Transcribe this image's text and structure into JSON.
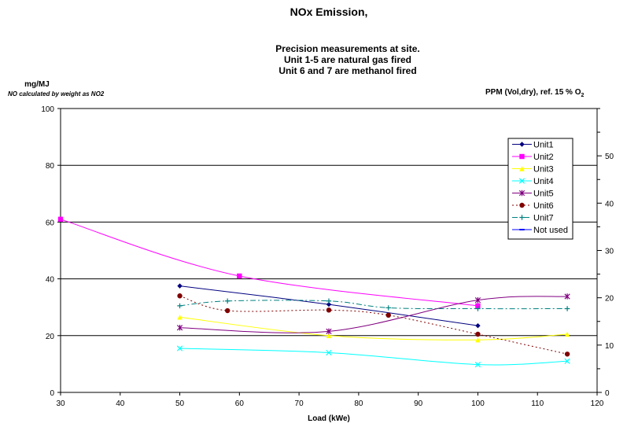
{
  "chart_data": {
    "type": "line",
    "title": "NOx Emission,",
    "subtitle_lines": [
      "Precision measurements at site.",
      "Unit 1-5 are natural gas fired",
      "Unit 6 and 7 are methanol fired"
    ],
    "xlabel": "Load (kWe)",
    "ylabel": "mg/MJ",
    "ylabel_note": "NO calculated by weight as NO2",
    "y2label_main": "PPM (Vol,dry), ref. 15 % O",
    "y2label_sub": "2",
    "xlim": [
      30,
      120
    ],
    "ylim": [
      0,
      100
    ],
    "y2lim": [
      0,
      60
    ],
    "xticks": [
      30,
      40,
      50,
      60,
      70,
      80,
      90,
      100,
      110,
      120
    ],
    "yticks": [
      0,
      20,
      40,
      60,
      80,
      100
    ],
    "y2ticks": [
      0,
      10,
      20,
      30,
      40,
      50
    ],
    "grid": "horizontal major on primary y",
    "legend_position": "upper right inside plot",
    "series": [
      {
        "name": "Unit1",
        "color": "#000080",
        "marker": "diamond",
        "dash": "solid",
        "x": [
          50,
          75,
          100
        ],
        "y": [
          37.5,
          31,
          23.5
        ]
      },
      {
        "name": "Unit2",
        "color": "#ff00ff",
        "marker": "square",
        "dash": "solid",
        "x": [
          30,
          60,
          100
        ],
        "y": [
          61,
          41,
          30.5
        ]
      },
      {
        "name": "Unit3",
        "color": "#ffff00",
        "marker": "triangle",
        "dash": "solid",
        "x": [
          50,
          75,
          100,
          115
        ],
        "y": [
          26.5,
          20,
          18.5,
          20.5
        ]
      },
      {
        "name": "Unit4",
        "color": "#00ffff",
        "marker": "x",
        "dash": "solid",
        "x": [
          50,
          75,
          100,
          115
        ],
        "y": [
          15.5,
          14,
          9.8,
          11
        ]
      },
      {
        "name": "Unit5",
        "color": "#800080",
        "marker": "star",
        "dash": "solid",
        "x": [
          50,
          75,
          100,
          115
        ],
        "y": [
          22.8,
          21.5,
          32.5,
          33.8
        ]
      },
      {
        "name": "Unit6",
        "color": "#800000",
        "marker": "circle",
        "dash": "dotted",
        "x": [
          50,
          58,
          75,
          85,
          100,
          115
        ],
        "y": [
          34,
          28.8,
          29,
          27.2,
          20.5,
          13.5
        ]
      },
      {
        "name": "Unit7",
        "color": "#008080",
        "marker": "plus",
        "dash": "dashdot",
        "x": [
          50,
          58,
          75,
          85,
          100,
          115
        ],
        "y": [
          30.5,
          32.2,
          32.2,
          29.8,
          29.5,
          29.5
        ]
      },
      {
        "name": "Not used",
        "color": "#0000ff",
        "marker": "bar",
        "dash": "solid",
        "x": [],
        "y": []
      }
    ]
  }
}
